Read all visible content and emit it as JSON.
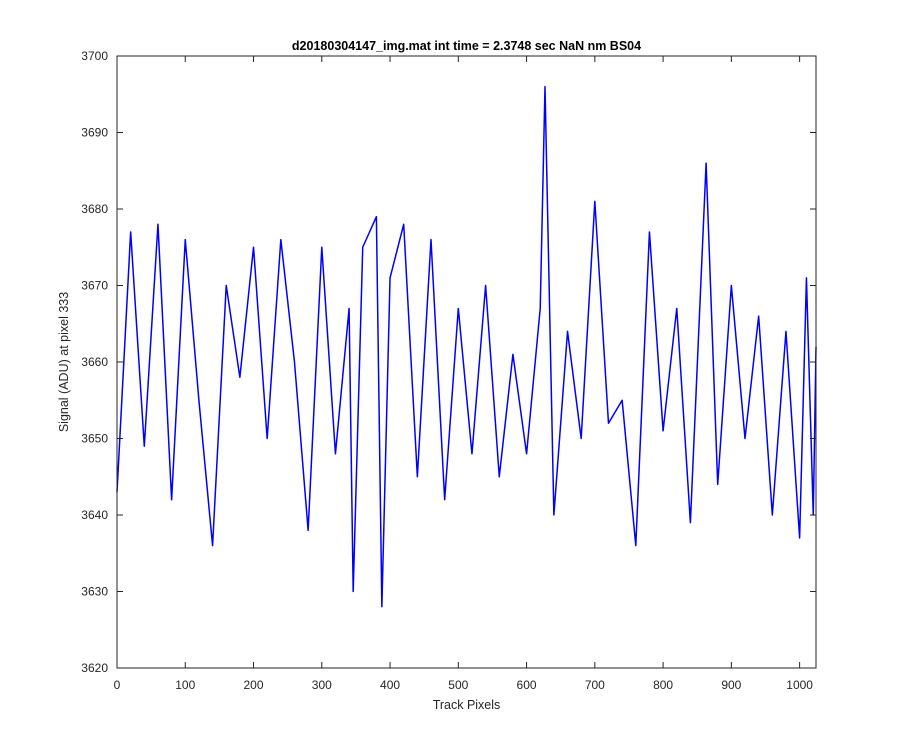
{
  "chart_data": {
    "type": "line",
    "title": "d20180304147_img.mat int time = 2.3748 sec  NaN nm BS04",
    "xlabel": "Track Pixels",
    "ylabel": "Signal (ADU) at pixel 333",
    "xlim": [
      0,
      1024
    ],
    "ylim": [
      3620,
      3700
    ],
    "xticks": [
      "0",
      "100",
      "200",
      "300",
      "400",
      "500",
      "600",
      "700",
      "800",
      "900",
      "1000"
    ],
    "yticks": [
      "3620",
      "3630",
      "3640",
      "3650",
      "3660",
      "3670",
      "3680",
      "3690",
      "3700"
    ],
    "grid": false,
    "series": [
      {
        "color": "#0000ff",
        "x": [
          0,
          20,
          40,
          60,
          80,
          100,
          120,
          140,
          160,
          180,
          200,
          220,
          240,
          260,
          280,
          300,
          320,
          340,
          346,
          360,
          380,
          388,
          400,
          420,
          440,
          460,
          480,
          500,
          520,
          540,
          560,
          580,
          600,
          620,
          627,
          640,
          660,
          680,
          700,
          720,
          740,
          760,
          780,
          800,
          820,
          840,
          863,
          880,
          900,
          920,
          940,
          960,
          980,
          1000,
          1010,
          1020,
          1024
        ],
        "y": [
          3643,
          3677,
          3649,
          3678,
          3642,
          3676,
          3655,
          3636,
          3670,
          3658,
          3675,
          3650,
          3676,
          3660,
          3638,
          3675,
          3648,
          3667,
          3630,
          3675,
          3679,
          3628,
          3671,
          3678,
          3645,
          3676,
          3642,
          3667,
          3648,
          3670,
          3645,
          3661,
          3648,
          3667,
          3696,
          3640,
          3664,
          3650,
          3681,
          3652,
          3655,
          3636,
          3677,
          3651,
          3667,
          3639,
          3686,
          3644,
          3670,
          3650,
          3666,
          3640,
          3664,
          3637,
          3671,
          3640,
          3662
        ]
      }
    ]
  }
}
